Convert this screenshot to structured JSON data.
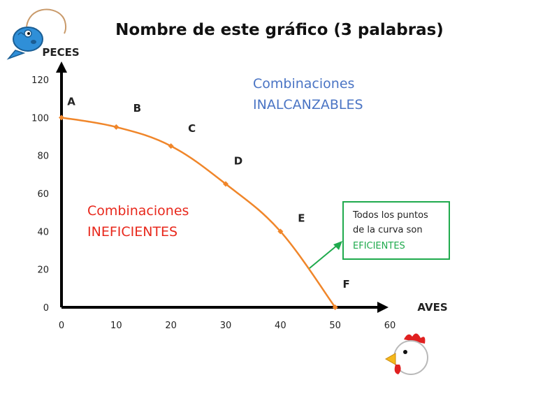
{
  "title": "Nombre de este gráfico (3 palabras)",
  "colors": {
    "curve": "#f0862a",
    "unreachable": "#4a74c4",
    "inefficient": "#e8281c",
    "efficient": "#1faa4d",
    "axis": "#000000"
  },
  "icons": {
    "top_left": "fish-icon",
    "bottom_right": "chicken-icon"
  },
  "chart_data": {
    "type": "line",
    "xlabel": "AVES",
    "ylabel": "PECES",
    "xlim": [
      0,
      60
    ],
    "ylim": [
      0,
      120
    ],
    "x_ticks": [
      "0",
      "10",
      "20",
      "30",
      "40",
      "50",
      "60"
    ],
    "y_ticks": [
      "0",
      "20",
      "40",
      "60",
      "80",
      "100",
      "120"
    ],
    "grid": false,
    "points": [
      {
        "label": "A",
        "x": 0,
        "y": 100
      },
      {
        "label": "B",
        "x": 10,
        "y": 95
      },
      {
        "label": "C",
        "x": 20,
        "y": 85
      },
      {
        "label": "D",
        "x": 30,
        "y": 65
      },
      {
        "label": "E",
        "x": 40,
        "y": 40
      },
      {
        "label": "F",
        "x": 50,
        "y": 0
      }
    ],
    "annotations": {
      "unreachable": [
        "Combinaciones",
        "INALCANZABLES"
      ],
      "inefficient": [
        "Combinaciones",
        "INEFICIENTES"
      ],
      "efficient_box": [
        "Todos los puntos",
        "de la curva son",
        "EFICIENTES"
      ]
    }
  }
}
